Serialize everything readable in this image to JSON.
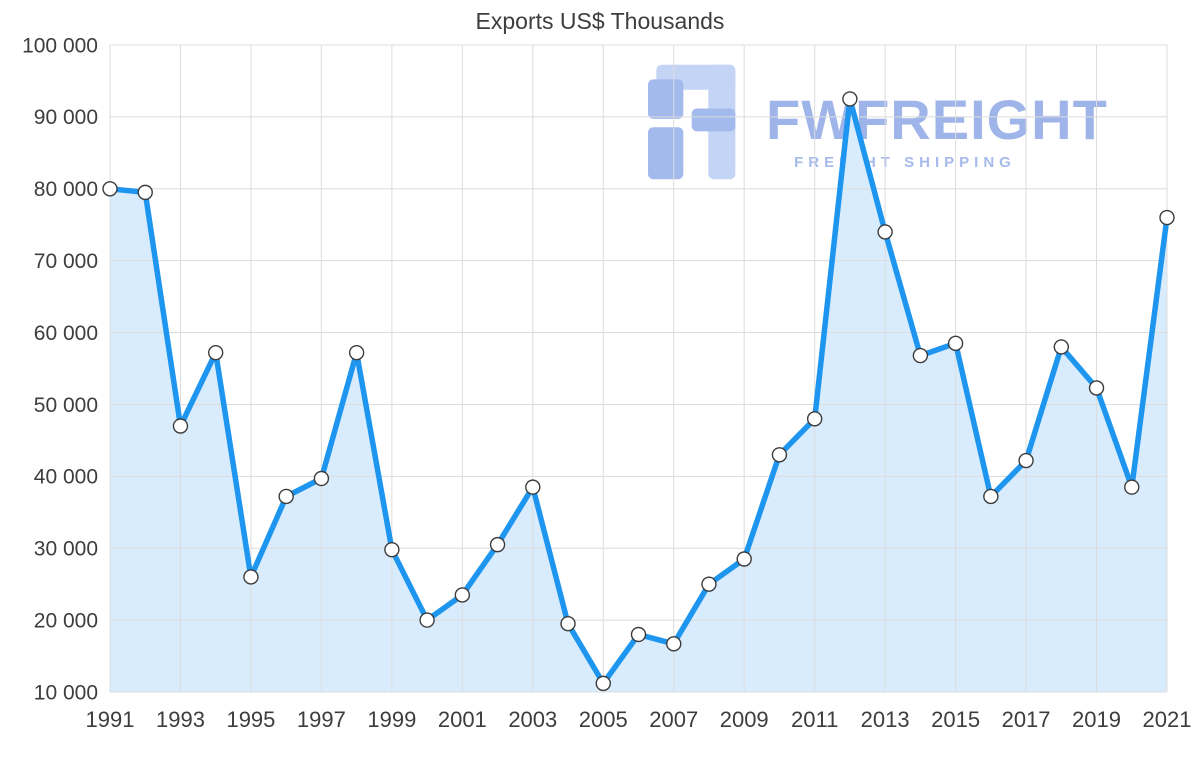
{
  "title": "Exports US$ Thousands",
  "watermark": {
    "brand": "FWFREIGHT",
    "subtitle": "FREIGHT SHIPPING",
    "color": "#8fa7e6"
  },
  "chart_data": {
    "type": "area",
    "title": "Exports US$ Thousands",
    "xlabel": "",
    "ylabel": "",
    "x": [
      1991,
      1992,
      1993,
      1994,
      1995,
      1996,
      1997,
      1998,
      1999,
      2000,
      2001,
      2002,
      2003,
      2004,
      2005,
      2006,
      2007,
      2008,
      2009,
      2010,
      2011,
      2012,
      2013,
      2014,
      2015,
      2016,
      2017,
      2018,
      2019,
      2020,
      2021
    ],
    "series": [
      {
        "name": "Exports US$ Thousands",
        "values": [
          80000,
          79500,
          47000,
          57200,
          26000,
          37200,
          39700,
          57200,
          29800,
          20000,
          23500,
          30500,
          38500,
          19500,
          11200,
          18000,
          16700,
          25000,
          28500,
          43000,
          48000,
          92500,
          74000,
          56800,
          58500,
          37200,
          42200,
          58000,
          52300,
          38500,
          76000
        ]
      }
    ],
    "ylim": [
      10000,
      100000
    ],
    "ytick_step": 10000,
    "xticks": [
      1991,
      1993,
      1995,
      1997,
      1999,
      2001,
      2003,
      2005,
      2007,
      2009,
      2011,
      2013,
      2015,
      2017,
      2019,
      2021
    ],
    "grid": true,
    "legend_position": "none",
    "colors": {
      "line": "#1e96f0",
      "fill": "#d9ecfd",
      "marker_fill": "#ffffff",
      "marker_stroke": "#3c3c3c",
      "grid": "#dcdcdc",
      "text": "#3d3d3d"
    }
  }
}
